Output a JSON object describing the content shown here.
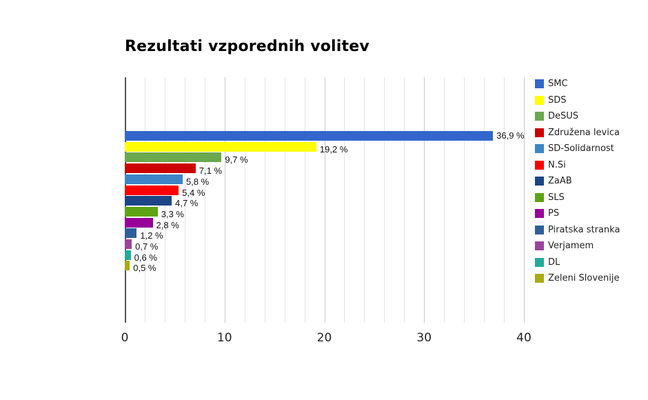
{
  "title": "Rezultati vzporednih volitev",
  "chart_data": {
    "type": "bar",
    "orientation": "horizontal",
    "title": "Rezultati vzporednih volitev",
    "xlabel": "",
    "ylabel": "",
    "xlim": [
      0,
      40
    ],
    "x_ticks": [
      "0",
      "10",
      "20",
      "30",
      "40"
    ],
    "grid": true,
    "legend_position": "right",
    "categories": [
      "SMC",
      "SDS",
      "DeSUS",
      "Združena levica",
      "SD-Solidarnost",
      "N.Si",
      "ZaAB",
      "SLS",
      "PS",
      "Piratska stranka",
      "Verjamem",
      "DL",
      "Zeleni Slovenije"
    ],
    "values": [
      36.9,
      19.2,
      9.7,
      7.1,
      5.8,
      5.4,
      4.7,
      3.3,
      2.8,
      1.2,
      0.7,
      0.6,
      0.5
    ],
    "labels": [
      "36,9 %",
      "19,2 %",
      "9,7 %",
      "7,1 %",
      "5,8 %",
      "5,4 %",
      "4,7 %",
      "3,3 %",
      "2,8 %",
      "1,2 %",
      "0,7 %",
      "0,6 %",
      "0,5 %"
    ],
    "colors": [
      "#3366cc",
      "#ffff00",
      "#6aa84f",
      "#cc0000",
      "#3d85c6",
      "#ff0000",
      "#1c4587",
      "#5ea314",
      "#990099",
      "#2f5f99",
      "#994499",
      "#22aa99",
      "#aaaa11"
    ]
  }
}
